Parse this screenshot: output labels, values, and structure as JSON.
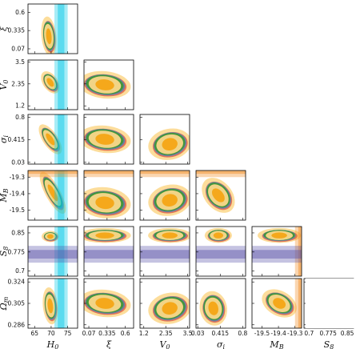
{
  "chart_data": {
    "type": "corner",
    "parameters": [
      {
        "symbol": "H",
        "sub": "0",
        "range": [
          63,
          78
        ],
        "ticks": [
          "65",
          "70",
          "75"
        ],
        "tick_values": [
          65,
          70,
          75
        ]
      },
      {
        "symbol": "ξ",
        "sub": "",
        "range": [
          0.0,
          0.72
        ],
        "ticks": [
          "0.07",
          "0.335",
          "0.6"
        ],
        "tick_values": [
          0.07,
          0.335,
          0.6
        ]
      },
      {
        "symbol": "V",
        "sub": "0",
        "range": [
          1.0,
          3.6
        ],
        "ticks": [
          "1.2",
          "2.35",
          "3.5"
        ],
        "tick_values": [
          1.2,
          2.35,
          3.5
        ]
      },
      {
        "symbol": "σ",
        "sub": "i",
        "range": [
          0.0,
          0.85
        ],
        "ticks": [
          "0.03",
          "0.415",
          "0.8"
        ],
        "tick_values": [
          0.03,
          0.415,
          0.8
        ]
      },
      {
        "symbol": "M",
        "sub": "B",
        "range": [
          -19.56,
          -19.26
        ],
        "ticks": [
          "-19.5",
          "-19.4",
          "-19.3"
        ],
        "tick_values": [
          -19.5,
          -19.4,
          -19.3
        ]
      },
      {
        "symbol": "S",
        "sub": "8",
        "range": [
          0.68,
          0.875
        ],
        "ticks": [
          "0.7",
          "0.775",
          "0.85"
        ],
        "tick_values": [
          0.7,
          0.775,
          0.85
        ]
      },
      {
        "symbol": "Ω",
        "sub": "m",
        "range": [
          0.283,
          0.327
        ],
        "ticks": [
          "0.286",
          "0.305",
          "0.324"
        ],
        "tick_values": [
          0.286,
          0.305,
          0.324
        ]
      }
    ],
    "bands": [
      {
        "param": 0,
        "center": 73.0,
        "inner": 1.0,
        "outer": 2.0,
        "color": "#00c8e6"
      },
      {
        "param": 4,
        "center": -19.25,
        "inner": 0.03,
        "outer": 0.05,
        "color": "#f08a1e"
      },
      {
        "param": 5,
        "center": 0.766,
        "inner": 0.017,
        "outer": 0.033,
        "color": "#5a52a8"
      }
    ],
    "series_colors": {
      "red": "#e2533c",
      "blue": "#3d7fc4",
      "green": "#3a9a2c",
      "orange": "#f5a81b",
      "light_orange": "#fbd78a"
    }
  }
}
